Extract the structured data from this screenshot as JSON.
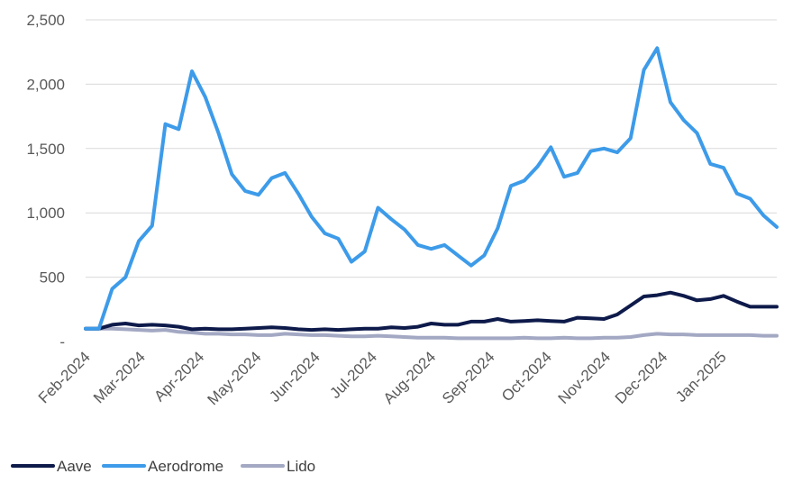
{
  "chart_data": {
    "type": "line",
    "title": "",
    "xlabel": "",
    "ylabel": "",
    "ylim": [
      0,
      2500
    ],
    "yticks": [
      0,
      500,
      1000,
      1500,
      2000,
      2500
    ],
    "ytick_labels": [
      "-",
      "500",
      "1,000",
      "1,500",
      "2,000",
      "2,500"
    ],
    "grid": "horizontal",
    "legend_position": "bottom-left",
    "x": [
      "2024-02-01",
      "2024-02-08",
      "2024-02-15",
      "2024-02-22",
      "2024-02-29",
      "2024-03-07",
      "2024-03-14",
      "2024-03-21",
      "2024-03-28",
      "2024-04-04",
      "2024-04-11",
      "2024-04-18",
      "2024-04-25",
      "2024-05-02",
      "2024-05-09",
      "2024-05-16",
      "2024-05-23",
      "2024-05-30",
      "2024-06-06",
      "2024-06-13",
      "2024-06-20",
      "2024-06-27",
      "2024-07-04",
      "2024-07-11",
      "2024-07-18",
      "2024-07-25",
      "2024-08-01",
      "2024-08-08",
      "2024-08-15",
      "2024-08-22",
      "2024-08-29",
      "2024-09-05",
      "2024-09-12",
      "2024-09-19",
      "2024-09-26",
      "2024-10-03",
      "2024-10-10",
      "2024-10-17",
      "2024-10-24",
      "2024-10-31",
      "2024-11-07",
      "2024-11-14",
      "2024-11-21",
      "2024-11-28",
      "2024-12-05",
      "2024-12-12",
      "2024-12-19",
      "2024-12-26",
      "2025-01-02",
      "2025-01-09",
      "2025-01-16",
      "2025-01-23",
      "2025-01-30"
    ],
    "xticks": [
      "2024-02-01",
      "2024-03-01",
      "2024-04-01",
      "2024-05-01",
      "2024-06-01",
      "2024-07-01",
      "2024-08-01",
      "2024-09-01",
      "2024-10-01",
      "2024-11-01",
      "2024-12-01",
      "2025-01-01"
    ],
    "xtick_labels": [
      "Feb-2024",
      "Mar-2024",
      "Apr-2024",
      "May-2024",
      "Jun-2024",
      "Jul-2024",
      "Aug-2024",
      "Sep-2024",
      "Oct-2024",
      "Nov-2024",
      "Dec-2024",
      "Jan-2025"
    ],
    "series": [
      {
        "name": "Aave",
        "color": "#0d1a4a",
        "values": [
          100,
          100,
          130,
          140,
          125,
          130,
          125,
          115,
          95,
          100,
          95,
          95,
          100,
          105,
          110,
          105,
          95,
          90,
          95,
          90,
          95,
          100,
          100,
          110,
          105,
          115,
          140,
          130,
          130,
          155,
          155,
          175,
          155,
          160,
          165,
          160,
          155,
          185,
          180,
          175,
          210,
          280,
          350,
          360,
          380,
          355,
          320,
          330,
          355,
          310,
          270,
          270,
          270
        ]
      },
      {
        "name": "Aerodrome",
        "color": "#3d9be9",
        "values": [
          100,
          100,
          410,
          500,
          780,
          900,
          1690,
          1650,
          2100,
          1900,
          1620,
          1300,
          1170,
          1140,
          1270,
          1310,
          1150,
          970,
          840,
          800,
          620,
          700,
          1040,
          950,
          870,
          750,
          720,
          750,
          670,
          590,
          670,
          880,
          1210,
          1250,
          1360,
          1510,
          1280,
          1310,
          1480,
          1500,
          1470,
          1580,
          2110,
          2280,
          1860,
          1720,
          1620,
          1380,
          1350,
          1150,
          1110,
          980,
          890
        ]
      },
      {
        "name": "Lido",
        "color": "#a3a8c3",
        "values": [
          100,
          100,
          100,
          95,
          90,
          85,
          90,
          75,
          70,
          60,
          60,
          55,
          55,
          50,
          50,
          60,
          55,
          50,
          50,
          45,
          40,
          40,
          45,
          40,
          35,
          30,
          30,
          30,
          25,
          25,
          25,
          25,
          25,
          30,
          25,
          25,
          30,
          25,
          25,
          30,
          30,
          35,
          50,
          60,
          55,
          55,
          50,
          50,
          50,
          50,
          50,
          45,
          45
        ]
      }
    ]
  }
}
